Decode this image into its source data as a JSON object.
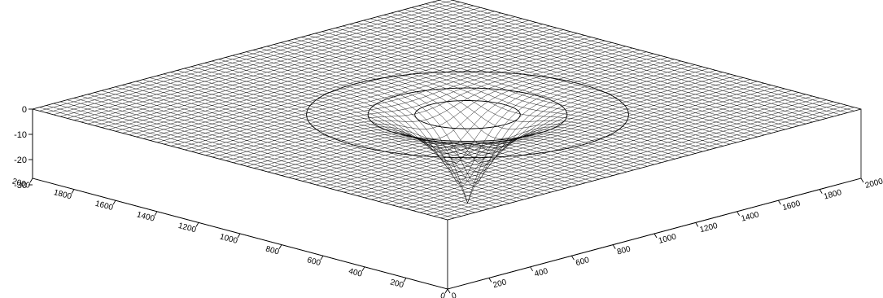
{
  "chart_data": {
    "type": "surface",
    "title": "",
    "xlabel": "",
    "ylabel": "",
    "zlabel": "",
    "x_ticks": [
      "0",
      "200",
      "400",
      "600",
      "800",
      "1000",
      "1200",
      "1400",
      "1600",
      "1800",
      "2000"
    ],
    "y_ticks": [
      "0",
      "200",
      "400",
      "600",
      "800",
      "1000",
      "1200",
      "1400",
      "1600",
      "1800",
      "2000"
    ],
    "z_ticks": [
      "0",
      "-10",
      "-20",
      "-30"
    ],
    "xlim": [
      0,
      2000
    ],
    "ylim": [
      0,
      2000
    ],
    "zlim": [
      -35,
      0
    ],
    "grid_resolution": 60,
    "surface": {
      "baseline_z": 0,
      "feature": "depression cone",
      "center": [
        1000,
        900
      ],
      "min_z": -35,
      "influence_radius": 600
    },
    "contours": [
      {
        "level": -1,
        "radius": 550
      },
      {
        "level": -3,
        "radius": 340
      },
      {
        "level": -8,
        "radius": 180
      }
    ],
    "colors": {
      "mesh": "#000000",
      "background": "#ffffff"
    }
  }
}
